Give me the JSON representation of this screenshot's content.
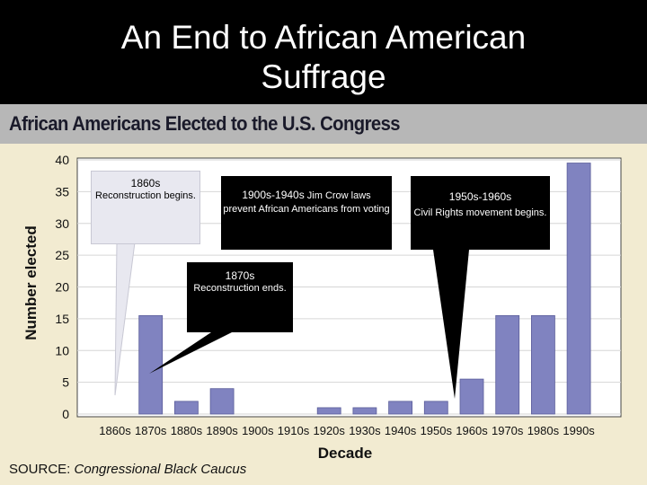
{
  "slide": {
    "title_line1": "An End to African American",
    "title_line2": "Suffrage"
  },
  "chart_header": "African Americans Elected to the U.S. Congress",
  "source": {
    "label": "SOURCE:",
    "text": "Congressional Black Caucus"
  },
  "callouts": [
    {
      "head": "1860s",
      "body": "Reconstruction begins."
    },
    {
      "head": "1900s-1940s",
      "head_suffix": " Jim Crow laws",
      "body": "prevent African Americans from voting"
    },
    {
      "head": "1950s-1960s",
      "body": "Civil Rights movement begins."
    },
    {
      "head": "1870s",
      "body": "Reconstruction ends."
    }
  ],
  "colors": {
    "bar": "#8083c0",
    "background": "#f2ebd1",
    "header": "#b7b7b7"
  },
  "chart_data": {
    "type": "bar",
    "title": "African Americans Elected to the U.S. Congress",
    "xlabel": "Decade",
    "ylabel": "Number elected",
    "ylim": [
      0,
      40
    ],
    "yticks": [
      0,
      5,
      10,
      15,
      20,
      25,
      30,
      35,
      40
    ],
    "grid": true,
    "categories": [
      "1860s",
      "1870s",
      "1880s",
      "1890s",
      "1900s",
      "1910s",
      "1920s",
      "1930s",
      "1940s",
      "1950s",
      "1960s",
      "1970s",
      "1980s",
      "1990s"
    ],
    "values": [
      0,
      15.5,
      2,
      4,
      0,
      0,
      1,
      1,
      2,
      2,
      5.5,
      15.5,
      15.5,
      39.5
    ]
  }
}
